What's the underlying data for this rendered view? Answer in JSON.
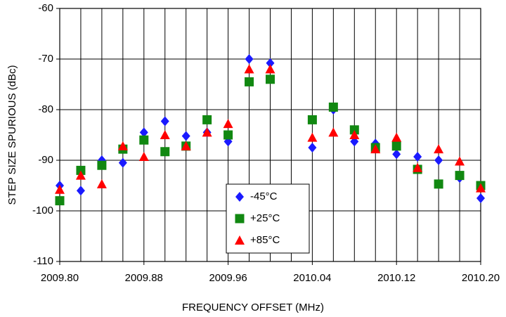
{
  "chart_data": {
    "type": "scatter",
    "xlabel": "FREQUENCY OFFSET (MHz)",
    "ylabel": "STEP SIZE SPURIOUS (dBc)",
    "x": [
      2009.8,
      2009.82,
      2009.84,
      2009.86,
      2009.88,
      2009.9,
      2009.92,
      2009.94,
      2009.96,
      2009.98,
      2010.0,
      2010.04,
      2010.06,
      2010.08,
      2010.1,
      2010.12,
      2010.14,
      2010.16,
      2010.18,
      2010.2
    ],
    "series": [
      {
        "name": "-45°C",
        "color": "#1a1aff",
        "marker": "diamond",
        "values": [
          -95,
          -96,
          -90,
          -90.5,
          -84.5,
          -82.3,
          -85.2,
          -84.5,
          -86.3,
          -70,
          -70.8,
          -87.5,
          -80,
          -86.3,
          -86.7,
          -88.8,
          -89.3,
          -90,
          -93.5,
          -97.5
        ]
      },
      {
        "name": "+25°C",
        "color": "#118811",
        "marker": "square",
        "values": [
          -98,
          -92,
          -91,
          -87.8,
          -86,
          -88.3,
          -87.2,
          -82,
          -85,
          -74.5,
          -74,
          -82,
          -79.5,
          -84,
          -87.5,
          -87.2,
          -91.8,
          -94.7,
          -93,
          -95
        ]
      },
      {
        "name": "+85°C",
        "color": "#ff0000",
        "marker": "triangle",
        "values": [
          -95.8,
          -93,
          -94.7,
          -87.2,
          -89.3,
          -85,
          -87.2,
          -84.5,
          -82.8,
          -72,
          -72,
          -85.5,
          -84.5,
          -85,
          -87.8,
          -85.5,
          -91.5,
          -87.8,
          -90.2,
          -95.5
        ]
      }
    ],
    "xlim": [
      2009.8,
      2010.2
    ],
    "xticks": [
      {
        "value": 2009.8,
        "label": "2009.80"
      },
      {
        "value": 2009.88,
        "label": "2009.88"
      },
      {
        "value": 2009.96,
        "label": "2009.96"
      },
      {
        "value": 2010.04,
        "label": "2010.04"
      },
      {
        "value": 2010.12,
        "label": "2010.12"
      },
      {
        "value": 2010.2,
        "label": "2010.20"
      }
    ],
    "xminor_ticks": [
      2009.82,
      2009.84,
      2009.86,
      2009.9,
      2009.92,
      2009.94,
      2009.98,
      2010.0,
      2010.02,
      2010.06,
      2010.08,
      2010.1,
      2010.14,
      2010.16,
      2010.18
    ],
    "ylim": [
      -110,
      -60
    ],
    "yticks": [
      -110,
      -100,
      -90,
      -80,
      -70,
      -60
    ],
    "grid": true
  }
}
